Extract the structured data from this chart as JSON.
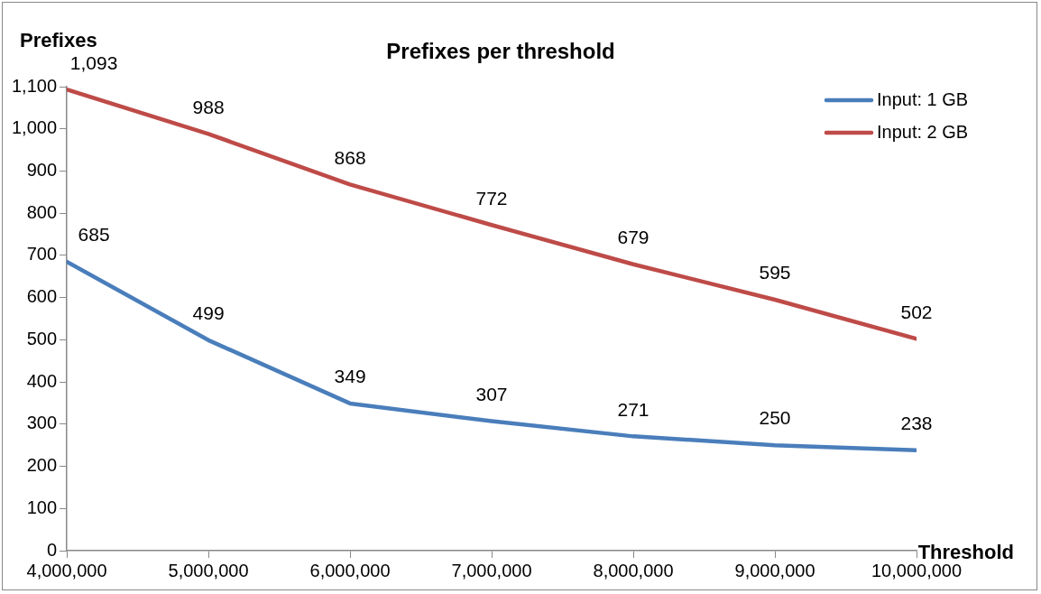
{
  "chart_data": {
    "type": "line",
    "title": "Prefixes per threshold",
    "xlabel": "Threshold",
    "ylabel": "Prefixes",
    "x": [
      4000000,
      5000000,
      6000000,
      7000000,
      8000000,
      9000000,
      10000000
    ],
    "series": [
      {
        "name": "Input: 1 GB",
        "color": "#4a7ebb",
        "values": [
          685,
          499,
          349,
          307,
          271,
          250,
          238
        ],
        "value_labels": [
          "685",
          "499",
          "349",
          "307",
          "271",
          "250",
          "238"
        ]
      },
      {
        "name": "Input: 2 GB",
        "color": "#be4b48",
        "values": [
          1093,
          988,
          868,
          772,
          679,
          595,
          502
        ],
        "value_labels": [
          "1,093",
          "988",
          "868",
          "772",
          "679",
          "595",
          "502"
        ]
      }
    ],
    "xlim": [
      4000000,
      10000000
    ],
    "xticks": [
      {
        "value": 4000000,
        "label": "4,000,000"
      },
      {
        "value": 5000000,
        "label": "5,000,000"
      },
      {
        "value": 6000000,
        "label": "6,000,000"
      },
      {
        "value": 7000000,
        "label": "7,000,000"
      },
      {
        "value": 8000000,
        "label": "8,000,000"
      },
      {
        "value": 9000000,
        "label": "9,000,000"
      },
      {
        "value": 10000000,
        "label": "10,000,000"
      }
    ],
    "ylim": [
      0,
      1100
    ],
    "yticks": [
      0,
      100,
      200,
      300,
      400,
      500,
      600,
      700,
      800,
      900,
      {
        "value": 1000,
        "label": "1,000"
      },
      {
        "value": 1100,
        "label": "1,100"
      }
    ],
    "grid": false,
    "legend": "top right",
    "marker": "none",
    "line_style": "solid"
  }
}
